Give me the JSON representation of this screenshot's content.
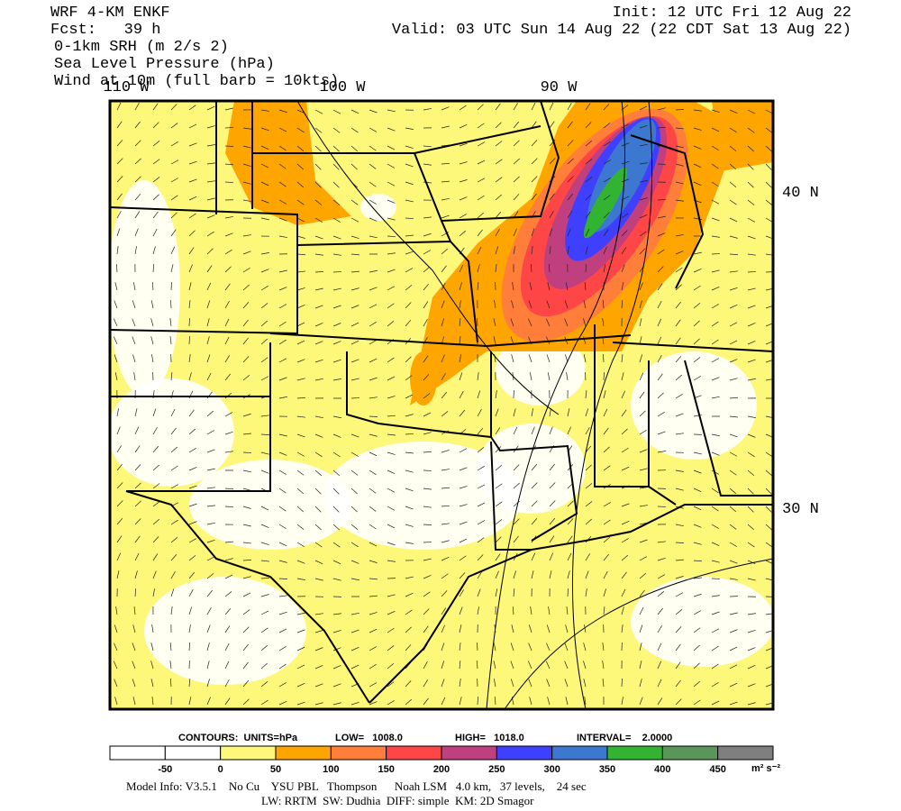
{
  "header": {
    "model": "WRF 4-KM ENKF",
    "forecast": "Fcst:   39 h",
    "field": "0-1km SRH (m 2/s 2)",
    "pressure": "Sea Level Pressure (hPa)",
    "wind": "Wind at 10m (full barb = 10kts)",
    "init": "Init: 12 UTC Fri 12 Aug 22",
    "valid": "Valid: 03 UTC Sun 14 Aug 22 (22 CDT Sat 13 Aug 22)"
  },
  "map": {
    "lon_labels": [
      "110 W",
      "100 W",
      "90 W"
    ],
    "lat_labels": [
      "40 N",
      "30 N"
    ]
  },
  "contours": {
    "units": "CONTOURS:  UNITS=hPa",
    "low": "LOW=   1008.0",
    "high": "HIGH=   1018.0",
    "interval": "INTERVAL=    2.0000"
  },
  "colorbar": {
    "colors": [
      "#ffffff",
      "#ffffff",
      "#fdf77a",
      "#ffa500",
      "#ff7f3a",
      "#ff4646",
      "#c0407f",
      "#3f3fff",
      "#3c78d0",
      "#32b432",
      "#5a965a",
      "#7f7f7f"
    ],
    "labels": [
      "-50",
      "0",
      "50",
      "100",
      "150",
      "200",
      "250",
      "300",
      "350",
      "400",
      "450"
    ],
    "units": "m² s⁻²"
  },
  "footer": {
    "line1": "Model Info: V3.5.1    No Cu    YSU PBL   Thompson      Noah LSM   4.0 km,   37 levels,    24 sec",
    "line2": "LW: RRTM  SW: Dudhia  DIFF: simple  KM: 2D Smagor"
  }
}
